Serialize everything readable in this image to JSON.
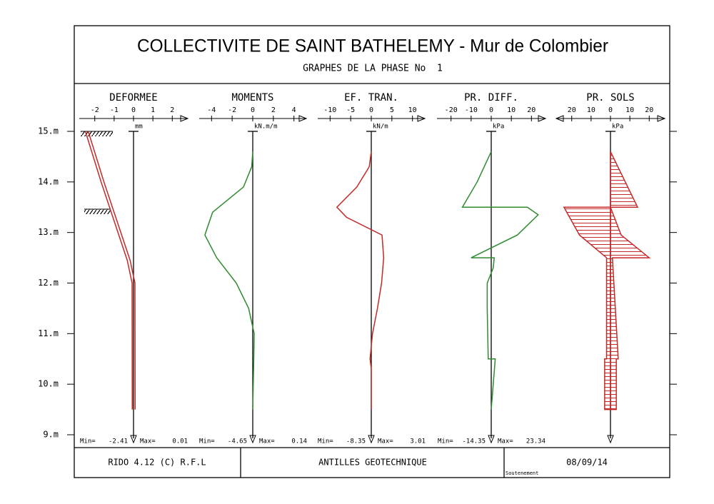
{
  "header": {
    "title": "COLLECTIVITE DE SAINT BATHELEMY - Mur de Colombier",
    "subtitle": "GRAPHES DE LA PHASE No  1"
  },
  "footer": {
    "software": "RIDO 4.12 (C) R.F.L",
    "company": "ANTILLES GEOTECHNIQUE",
    "date": "08/09/14",
    "note": "Soutenement"
  },
  "depth_axis": {
    "ylim": [
      9,
      15
    ],
    "yticks": [
      {
        "value": 15,
        "label": "15.m"
      },
      {
        "value": 14,
        "label": "14.m"
      },
      {
        "value": 13,
        "label": "13.m"
      },
      {
        "value": 12,
        "label": "12.m"
      },
      {
        "value": 11,
        "label": "11.m"
      },
      {
        "value": 10,
        "label": "10.m"
      },
      {
        "value": 9,
        "label": "9.m"
      }
    ]
  },
  "chart_data": [
    {
      "type": "line",
      "title": "DEFORMEE",
      "unit": "mm",
      "line_style": "double",
      "xlim": [
        -2.8,
        2.8
      ],
      "xticks": [
        -2,
        -1,
        0,
        1,
        2
      ],
      "depth": [
        15,
        14,
        12.45,
        12,
        9.5
      ],
      "series": [
        {
          "color": "#c62828",
          "values": [
            -2.41,
            -1.6,
            -0.25,
            0,
            0.01
          ]
        }
      ],
      "min_label": "Min=",
      "min": -2.41,
      "max_label": "Max=",
      "max": 0.01
    },
    {
      "type": "line",
      "title": "MOMENTS",
      "unit": "kN.m/m",
      "xlim": [
        -5.2,
        5.2
      ],
      "xticks": [
        -4,
        -2,
        0,
        2,
        4
      ],
      "depth": [
        14.6,
        14.3,
        13.9,
        13.4,
        12.95,
        12.5,
        12.0,
        11.5,
        11.0,
        10.5,
        9.5
      ],
      "series": [
        {
          "color": "#2e8b2e",
          "values": [
            0,
            -0.1,
            -0.9,
            -3.9,
            -4.65,
            -3.5,
            -1.6,
            -0.4,
            0.14,
            0.1,
            0
          ]
        }
      ],
      "min_label": "Min=",
      "min": -4.65,
      "max_label": "Max=",
      "max": 0.14
    },
    {
      "type": "line",
      "title": "EF.  TRAN.",
      "unit": "kN/m",
      "xlim": [
        -13,
        13
      ],
      "xticks": [
        -10,
        -5,
        0,
        5,
        10
      ],
      "depth": [
        14.6,
        14.3,
        13.9,
        13.5,
        13.3,
        12.95,
        12.5,
        12.0,
        11.5,
        11.0,
        10.5,
        10.3,
        9.5
      ],
      "series": [
        {
          "color": "#c62828",
          "values": [
            0,
            -0.5,
            -3.5,
            -8.35,
            -6,
            2.6,
            3.01,
            2.5,
            1.5,
            0.3,
            -0.3,
            0,
            0
          ]
        }
      ],
      "min_label": "Min=",
      "min": -8.35,
      "max_label": "Max=",
      "max": 3.01
    },
    {
      "type": "line",
      "title": "PR.  DIFF.",
      "unit": "kPa",
      "xlim": [
        -27,
        27
      ],
      "xticks": [
        -20,
        -10,
        0,
        10,
        20
      ],
      "depth": [
        14.6,
        14.0,
        13.5,
        13.5,
        13.35,
        12.95,
        12.5,
        12.5,
        12.3,
        12.0,
        11.5,
        10.5,
        10.5,
        9.5
      ],
      "series": [
        {
          "color": "#2e8b2e",
          "values": [
            0,
            -7,
            -14.35,
            18,
            23.34,
            13,
            -10,
            1.5,
            1,
            -2,
            -2,
            -1.5,
            2,
            0
          ]
        }
      ],
      "min_label": "Min=",
      "min": -14.35,
      "max_label": "Max=",
      "max": 23.34
    },
    {
      "type": "area",
      "title": "PR.  SOLS",
      "unit": "kPa",
      "xlim": [
        -28,
        28
      ],
      "xticks": [
        {
          "value": -20,
          "label": "20"
        },
        {
          "value": -10,
          "label": "10"
        },
        0,
        10,
        20
      ],
      "depth": [
        14.6,
        13.5,
        13.5,
        12.95,
        12.5,
        12.5,
        10.5,
        10.5,
        9.5
      ],
      "series": [
        {
          "color": "#c62828",
          "values": [
            0,
            14,
            0,
            5.5,
            20,
            1,
            4,
            3,
            3
          ]
        },
        {
          "color": "#c62828",
          "values": [
            0,
            0,
            -24,
            -16,
            -2,
            -2,
            -2,
            -3,
            -3
          ]
        }
      ]
    }
  ]
}
